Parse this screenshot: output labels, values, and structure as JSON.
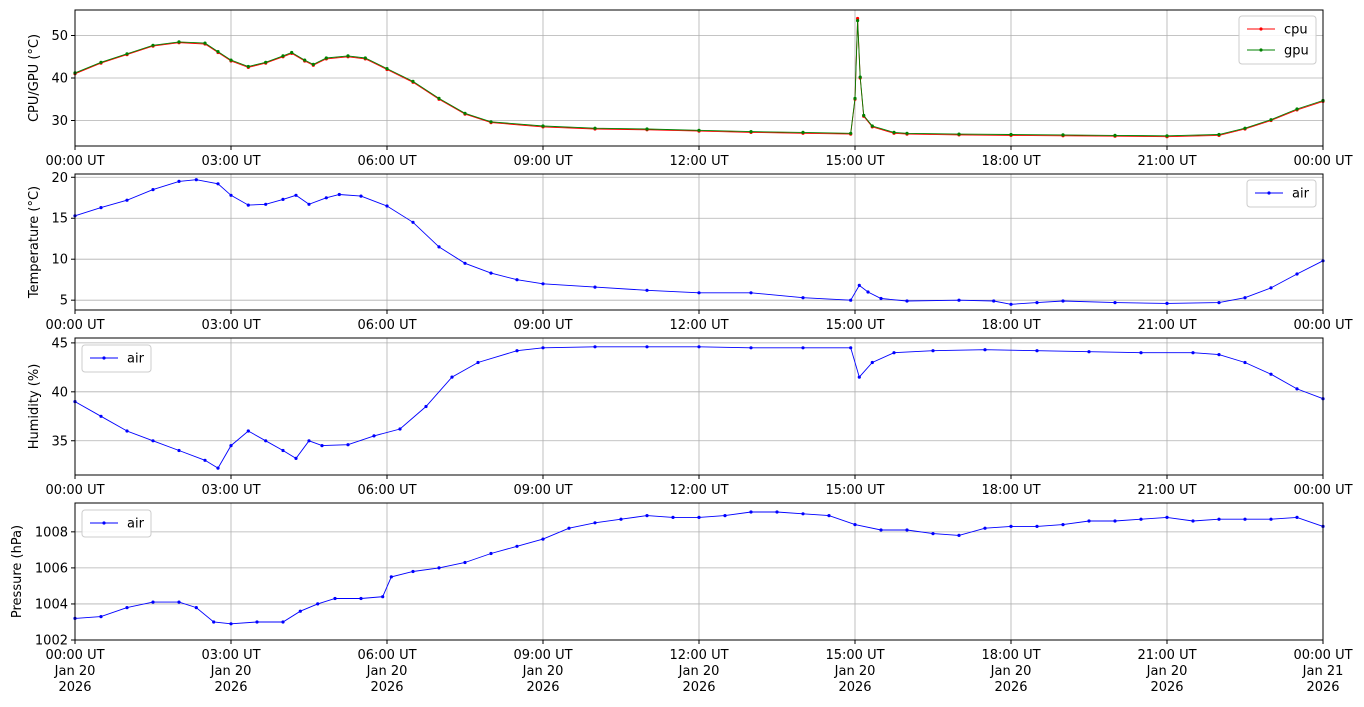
{
  "chart_data": [
    {
      "type": "line",
      "ylabel": "CPU/GPU (°C)",
      "ylim": [
        24,
        56
      ],
      "yticks": [
        30,
        40,
        50
      ],
      "xlim": [
        "2026-01-20T00:00Z",
        "2026-01-21T00:00Z"
      ],
      "xticks": [
        "00:00 UT",
        "03:00 UT",
        "06:00 UT",
        "09:00 UT",
        "12:00 UT",
        "15:00 UT",
        "18:00 UT",
        "21:00 UT",
        "00:00 UT"
      ],
      "grid": true,
      "legend": "top-right",
      "series": [
        {
          "name": "cpu",
          "color": "#ff0000",
          "points": [
            [
              "00:00",
              41.0
            ],
            [
              "00:30",
              43.5
            ],
            [
              "01:00",
              45.5
            ],
            [
              "01:30",
              47.5
            ],
            [
              "02:00",
              48.3
            ],
            [
              "02:30",
              48.0
            ],
            [
              "02:45",
              46.0
            ],
            [
              "03:00",
              44.0
            ],
            [
              "03:20",
              42.5
            ],
            [
              "03:40",
              43.5
            ],
            [
              "04:00",
              45.0
            ],
            [
              "04:10",
              45.8
            ],
            [
              "04:25",
              44.0
            ],
            [
              "04:35",
              43.0
            ],
            [
              "04:50",
              44.5
            ],
            [
              "05:15",
              45.0
            ],
            [
              "05:35",
              44.5
            ],
            [
              "06:00",
              42.0
            ],
            [
              "06:30",
              39.0
            ],
            [
              "07:00",
              35.0
            ],
            [
              "07:30",
              31.5
            ],
            [
              "08:00",
              29.5
            ],
            [
              "09:00",
              28.5
            ],
            [
              "10:00",
              28.0
            ],
            [
              "11:00",
              27.8
            ],
            [
              "12:00",
              27.5
            ],
            [
              "13:00",
              27.2
            ],
            [
              "14:00",
              27.0
            ],
            [
              "14:55",
              26.8
            ],
            [
              "15:00",
              35.0
            ],
            [
              "15:03",
              54.0
            ],
            [
              "15:06",
              40.0
            ],
            [
              "15:10",
              31.0
            ],
            [
              "15:20",
              28.5
            ],
            [
              "15:45",
              27.0
            ],
            [
              "16:00",
              26.8
            ],
            [
              "17:00",
              26.6
            ],
            [
              "18:00",
              26.5
            ],
            [
              "19:00",
              26.4
            ],
            [
              "20:00",
              26.3
            ],
            [
              "21:00",
              26.2
            ],
            [
              "22:00",
              26.5
            ],
            [
              "22:30",
              28.0
            ],
            [
              "23:00",
              30.0
            ],
            [
              "23:30",
              32.5
            ],
            [
              "24:00",
              34.5
            ]
          ]
        },
        {
          "name": "gpu",
          "color": "#008000",
          "points": [
            [
              "00:00",
              41.2
            ],
            [
              "00:30",
              43.7
            ],
            [
              "01:00",
              45.7
            ],
            [
              "01:30",
              47.7
            ],
            [
              "02:00",
              48.5
            ],
            [
              "02:30",
              48.2
            ],
            [
              "02:45",
              46.2
            ],
            [
              "03:00",
              44.2
            ],
            [
              "03:20",
              42.7
            ],
            [
              "03:40",
              43.7
            ],
            [
              "04:00",
              45.2
            ],
            [
              "04:10",
              46.0
            ],
            [
              "04:25",
              44.2
            ],
            [
              "04:35",
              43.2
            ],
            [
              "04:50",
              44.7
            ],
            [
              "05:15",
              45.2
            ],
            [
              "05:35",
              44.7
            ],
            [
              "06:00",
              42.2
            ],
            [
              "06:30",
              39.2
            ],
            [
              "07:00",
              35.2
            ],
            [
              "07:30",
              31.7
            ],
            [
              "08:00",
              29.7
            ],
            [
              "09:00",
              28.7
            ],
            [
              "10:00",
              28.2
            ],
            [
              "11:00",
              28.0
            ],
            [
              "12:00",
              27.7
            ],
            [
              "13:00",
              27.4
            ],
            [
              "14:00",
              27.2
            ],
            [
              "14:55",
              27.0
            ],
            [
              "15:00",
              35.2
            ],
            [
              "15:03",
              53.5
            ],
            [
              "15:06",
              40.2
            ],
            [
              "15:10",
              31.2
            ],
            [
              "15:20",
              28.7
            ],
            [
              "15:45",
              27.2
            ],
            [
              "16:00",
              27.0
            ],
            [
              "17:00",
              26.8
            ],
            [
              "18:00",
              26.7
            ],
            [
              "19:00",
              26.6
            ],
            [
              "20:00",
              26.5
            ],
            [
              "21:00",
              26.4
            ],
            [
              "22:00",
              26.7
            ],
            [
              "22:30",
              28.2
            ],
            [
              "23:00",
              30.2
            ],
            [
              "23:30",
              32.7
            ],
            [
              "24:00",
              34.7
            ]
          ]
        }
      ]
    },
    {
      "type": "line",
      "ylabel": "Temperature (°C)",
      "ylim": [
        3.8,
        20.4
      ],
      "yticks": [
        5,
        10,
        15,
        20
      ],
      "xlim": [
        "2026-01-20T00:00Z",
        "2026-01-21T00:00Z"
      ],
      "xticks": [
        "00:00 UT",
        "03:00 UT",
        "06:00 UT",
        "09:00 UT",
        "12:00 UT",
        "15:00 UT",
        "18:00 UT",
        "21:00 UT",
        "00:00 UT"
      ],
      "grid": true,
      "legend": "top-right",
      "series": [
        {
          "name": "air",
          "color": "#0000ff",
          "points": [
            [
              "00:00",
              15.3
            ],
            [
              "00:30",
              16.3
            ],
            [
              "01:00",
              17.2
            ],
            [
              "01:30",
              18.5
            ],
            [
              "02:00",
              19.5
            ],
            [
              "02:20",
              19.7
            ],
            [
              "02:45",
              19.2
            ],
            [
              "03:00",
              17.8
            ],
            [
              "03:20",
              16.6
            ],
            [
              "03:40",
              16.7
            ],
            [
              "04:00",
              17.3
            ],
            [
              "04:15",
              17.8
            ],
            [
              "04:30",
              16.7
            ],
            [
              "04:50",
              17.5
            ],
            [
              "05:05",
              17.9
            ],
            [
              "05:30",
              17.7
            ],
            [
              "06:00",
              16.5
            ],
            [
              "06:30",
              14.5
            ],
            [
              "07:00",
              11.5
            ],
            [
              "07:30",
              9.5
            ],
            [
              "08:00",
              8.3
            ],
            [
              "08:30",
              7.5
            ],
            [
              "09:00",
              7.0
            ],
            [
              "10:00",
              6.6
            ],
            [
              "11:00",
              6.2
            ],
            [
              "12:00",
              5.9
            ],
            [
              "13:00",
              5.9
            ],
            [
              "14:00",
              5.3
            ],
            [
              "14:55",
              5.0
            ],
            [
              "15:05",
              6.8
            ],
            [
              "15:15",
              6.0
            ],
            [
              "15:30",
              5.2
            ],
            [
              "16:00",
              4.9
            ],
            [
              "17:00",
              5.0
            ],
            [
              "17:40",
              4.9
            ],
            [
              "18:00",
              4.5
            ],
            [
              "18:30",
              4.7
            ],
            [
              "19:00",
              4.9
            ],
            [
              "20:00",
              4.7
            ],
            [
              "21:00",
              4.6
            ],
            [
              "22:00",
              4.7
            ],
            [
              "22:30",
              5.3
            ],
            [
              "23:00",
              6.5
            ],
            [
              "23:30",
              8.2
            ],
            [
              "24:00",
              9.8
            ]
          ]
        }
      ]
    },
    {
      "type": "line",
      "ylabel": "Humidity (%)",
      "ylim": [
        31.5,
        45.5
      ],
      "yticks": [
        35,
        40,
        45
      ],
      "xlim": [
        "2026-01-20T00:00Z",
        "2026-01-21T00:00Z"
      ],
      "xticks": [
        "00:00 UT",
        "03:00 UT",
        "06:00 UT",
        "09:00 UT",
        "12:00 UT",
        "15:00 UT",
        "18:00 UT",
        "21:00 UT",
        "00:00 UT"
      ],
      "grid": true,
      "legend": "top-left",
      "series": [
        {
          "name": "air",
          "color": "#0000ff",
          "points": [
            [
              "00:00",
              39.0
            ],
            [
              "00:30",
              37.5
            ],
            [
              "01:00",
              36.0
            ],
            [
              "01:30",
              35.0
            ],
            [
              "02:00",
              34.0
            ],
            [
              "02:30",
              33.0
            ],
            [
              "02:45",
              32.2
            ],
            [
              "03:00",
              34.5
            ],
            [
              "03:20",
              36.0
            ],
            [
              "03:40",
              35.0
            ],
            [
              "04:00",
              34.0
            ],
            [
              "04:15",
              33.2
            ],
            [
              "04:30",
              35.0
            ],
            [
              "04:45",
              34.5
            ],
            [
              "05:15",
              34.6
            ],
            [
              "05:45",
              35.5
            ],
            [
              "06:15",
              36.2
            ],
            [
              "06:45",
              38.5
            ],
            [
              "07:15",
              41.5
            ],
            [
              "07:45",
              43.0
            ],
            [
              "08:30",
              44.2
            ],
            [
              "09:00",
              44.5
            ],
            [
              "10:00",
              44.6
            ],
            [
              "11:00",
              44.6
            ],
            [
              "12:00",
              44.6
            ],
            [
              "13:00",
              44.5
            ],
            [
              "14:00",
              44.5
            ],
            [
              "14:55",
              44.5
            ],
            [
              "15:05",
              41.5
            ],
            [
              "15:20",
              43.0
            ],
            [
              "15:45",
              44.0
            ],
            [
              "16:30",
              44.2
            ],
            [
              "17:30",
              44.3
            ],
            [
              "18:30",
              44.2
            ],
            [
              "19:30",
              44.1
            ],
            [
              "20:30",
              44.0
            ],
            [
              "21:30",
              44.0
            ],
            [
              "22:00",
              43.8
            ],
            [
              "22:30",
              43.0
            ],
            [
              "23:00",
              41.8
            ],
            [
              "23:30",
              40.3
            ],
            [
              "24:00",
              39.3
            ]
          ]
        }
      ]
    },
    {
      "type": "line",
      "ylabel": "Pressure (hPa)",
      "ylim": [
        1002,
        1009.6
      ],
      "yticks": [
        1002,
        1004,
        1006,
        1008
      ],
      "xlim": [
        "2026-01-20T00:00Z",
        "2026-01-21T00:00Z"
      ],
      "xticks": [
        "00:00 UT\nJan 20\n2026",
        "03:00 UT\nJan 20\n2026",
        "06:00 UT\nJan 20\n2026",
        "09:00 UT\nJan 20\n2026",
        "12:00 UT\nJan 20\n2026",
        "15:00 UT\nJan 20\n2026",
        "18:00 UT\nJan 20\n2026",
        "21:00 UT\nJan 20\n2026",
        "00:00 UT\nJan 21\n2026"
      ],
      "grid": true,
      "legend": "top-left",
      "series": [
        {
          "name": "air",
          "color": "#0000ff",
          "points": [
            [
              "00:00",
              1003.2
            ],
            [
              "00:30",
              1003.3
            ],
            [
              "01:00",
              1003.8
            ],
            [
              "01:30",
              1004.1
            ],
            [
              "02:00",
              1004.1
            ],
            [
              "02:20",
              1003.8
            ],
            [
              "02:40",
              1003.0
            ],
            [
              "03:00",
              1002.9
            ],
            [
              "03:30",
              1003.0
            ],
            [
              "04:00",
              1003.0
            ],
            [
              "04:20",
              1003.6
            ],
            [
              "04:40",
              1004.0
            ],
            [
              "05:00",
              1004.3
            ],
            [
              "05:30",
              1004.3
            ],
            [
              "05:55",
              1004.4
            ],
            [
              "06:05",
              1005.5
            ],
            [
              "06:30",
              1005.8
            ],
            [
              "07:00",
              1006.0
            ],
            [
              "07:30",
              1006.3
            ],
            [
              "08:00",
              1006.8
            ],
            [
              "08:30",
              1007.2
            ],
            [
              "09:00",
              1007.6
            ],
            [
              "09:30",
              1008.2
            ],
            [
              "10:00",
              1008.5
            ],
            [
              "10:30",
              1008.7
            ],
            [
              "11:00",
              1008.9
            ],
            [
              "11:30",
              1008.8
            ],
            [
              "12:00",
              1008.8
            ],
            [
              "12:30",
              1008.9
            ],
            [
              "13:00",
              1009.1
            ],
            [
              "13:30",
              1009.1
            ],
            [
              "14:00",
              1009.0
            ],
            [
              "14:30",
              1008.9
            ],
            [
              "15:00",
              1008.4
            ],
            [
              "15:30",
              1008.1
            ],
            [
              "16:00",
              1008.1
            ],
            [
              "16:30",
              1007.9
            ],
            [
              "17:00",
              1007.8
            ],
            [
              "17:30",
              1008.2
            ],
            [
              "18:00",
              1008.3
            ],
            [
              "18:30",
              1008.3
            ],
            [
              "19:00",
              1008.4
            ],
            [
              "19:30",
              1008.6
            ],
            [
              "20:00",
              1008.6
            ],
            [
              "20:30",
              1008.7
            ],
            [
              "21:00",
              1008.8
            ],
            [
              "21:30",
              1008.6
            ],
            [
              "22:00",
              1008.7
            ],
            [
              "22:30",
              1008.7
            ],
            [
              "23:00",
              1008.7
            ],
            [
              "23:30",
              1008.8
            ],
            [
              "24:00",
              1008.3
            ]
          ]
        }
      ]
    }
  ]
}
